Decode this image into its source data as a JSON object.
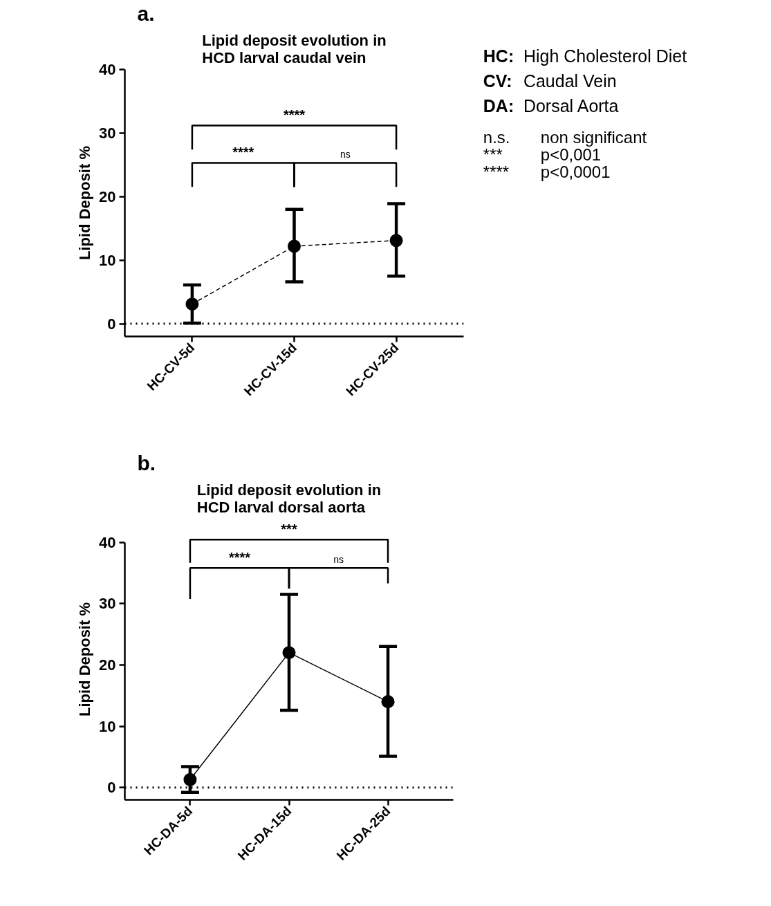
{
  "chart_data": [
    {
      "type": "line",
      "title": "Lipid deposit evolution in\nHCD larval caudal vein",
      "ylabel": "Lipid Deposit %",
      "categories": [
        "HC-CV-5d",
        "HC-CV-15d",
        "HC-CV-25d"
      ],
      "series": [
        {
          "color": "#000000",
          "values": [
            3.1,
            12.2,
            13.1
          ],
          "errors": [
            [
              0.1,
              6.1
            ],
            [
              6.6,
              18.0
            ],
            [
              7.5,
              18.9
            ]
          ]
        }
      ],
      "marker": "circle",
      "line_style": "dashed",
      "ylim": [
        -2,
        40
      ],
      "yticks": [
        0,
        10,
        20,
        30,
        40
      ],
      "grid": false,
      "ref_lines": [
        {
          "axis": "y",
          "value": 0,
          "line_style": "dotted",
          "color": "#000000"
        }
      ],
      "annotations": [
        "a.",
        "****",
        "****",
        "ns"
      ]
    },
    {
      "type": "line",
      "title": "Lipid deposit evolution in\nHCD larval dorsal aorta",
      "ylabel": "Lipid Deposit %",
      "categories": [
        "HC-DA-5d",
        "HC-DA-15d",
        "HC-DA-25d"
      ],
      "series": [
        {
          "color": "#000000",
          "values": [
            1.3,
            22.0,
            14.0
          ],
          "errors": [
            [
              -0.8,
              3.4
            ],
            [
              12.6,
              31.5
            ],
            [
              5.1,
              23.0
            ]
          ]
        }
      ],
      "marker": "circle",
      "line_style": "solid",
      "ylim": [
        -2,
        40
      ],
      "yticks": [
        0,
        10,
        20,
        30,
        40
      ],
      "grid": false,
      "ref_lines": [
        {
          "axis": "y",
          "value": 0,
          "line_style": "dotted",
          "color": "#000000"
        }
      ],
      "annotations": [
        "b.",
        "***",
        "****",
        "ns"
      ]
    },
    {
      "type": "other",
      "annotations": [
        "HC: High Cholesterol Diet",
        "CV: Caudal Vein",
        "DA: Dorsal Aorta",
        "n.s. non significant",
        "*** p<0,001",
        "**** p<0,0001"
      ]
    }
  ]
}
